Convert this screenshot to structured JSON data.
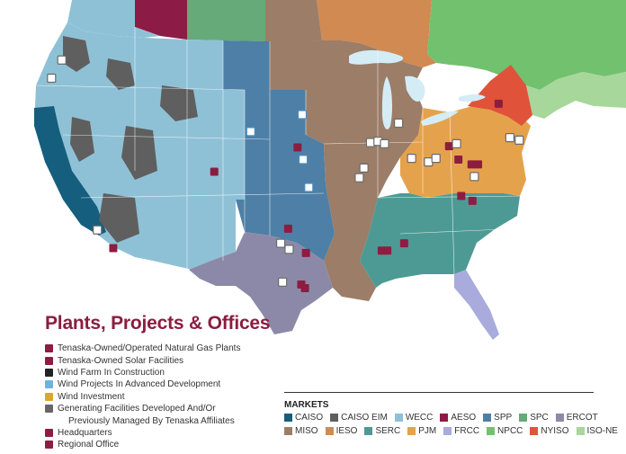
{
  "title": "Plants, Projects & Offices",
  "legend": [
    {
      "label": "Tenaska-Owned/Operated Natural Gas Plants",
      "icon": "flame-icon",
      "color": "#8c1d40"
    },
    {
      "label": "Tenaska-Owned Solar Facilities",
      "icon": "sun-icon",
      "color": "#8c1d40"
    },
    {
      "label": "Wind Farm In Construction",
      "icon": "wind-turbine-icon",
      "color": "#222222"
    },
    {
      "label": "Wind Projects In Advanced Development",
      "icon": "wind-turbine-icon",
      "color": "#6fb3dd"
    },
    {
      "label": "Wind Investment",
      "icon": "wind-turbine-icon",
      "color": "#d9a72e"
    },
    {
      "label": "Generating Facilities Developed And/Or",
      "icon": "plant-outline-icon",
      "color": "#666666"
    },
    {
      "label": "Previously Managed By Tenaska Affiliates",
      "icon": "",
      "color": ""
    },
    {
      "label": "Headquarters",
      "icon": "star-icon",
      "color": "#8c1d40"
    },
    {
      "label": "Regional Office",
      "icon": "building-icon",
      "color": "#8c1d40"
    }
  ],
  "markets": {
    "title": "MARKETS",
    "rows": [
      [
        {
          "label": "CAISO",
          "color": "#155e7e"
        },
        {
          "label": "CAISO EIM",
          "color": "#5f5f5f"
        },
        {
          "label": "WECC",
          "color": "#8fc1d6"
        },
        {
          "label": "AESO",
          "color": "#8c1b45"
        },
        {
          "label": "SPP",
          "color": "#4e7fa6"
        },
        {
          "label": "SPC",
          "color": "#66aa7a"
        },
        {
          "label": "ERCOT",
          "color": "#8c89a8"
        }
      ],
      [
        {
          "label": "MISO",
          "color": "#9b7d68"
        },
        {
          "label": "IESO",
          "color": "#d08a52"
        },
        {
          "label": "SERC",
          "color": "#4d9a94"
        },
        {
          "label": "PJM",
          "color": "#e5a24c"
        },
        {
          "label": "FRCC",
          "color": "#a8abdc"
        },
        {
          "label": "NPCC",
          "color": "#72c16f"
        },
        {
          "label": "NYISO",
          "color": "#e0533a"
        },
        {
          "label": "ISO-NE",
          "color": "#a7d79a"
        }
      ]
    ]
  },
  "map_markers": [
    {
      "icon": "building-icon",
      "lat": 39.3,
      "lon": -104.9
    },
    {
      "icon": "plant-outline-icon",
      "lat": 34.5,
      "lon": -117.4
    },
    {
      "icon": "sun-icon",
      "lat": 33.0,
      "lon": -115.7
    },
    {
      "icon": "star-icon",
      "lat": 41.3,
      "lon": -96.0
    },
    {
      "icon": "wind-turbine-icon",
      "lat": 40.3,
      "lon": -95.4
    },
    {
      "icon": "wind-turbine-icon",
      "lat": 42.6,
      "lon": -101.0
    },
    {
      "icon": "wind-turbine-icon",
      "lat": 44.0,
      "lon": -95.5
    },
    {
      "icon": "wind-turbine-icon",
      "lat": 38.0,
      "lon": -94.8
    },
    {
      "icon": "flame-icon",
      "lat": 34.6,
      "lon": -97.0
    },
    {
      "icon": "plant-outline-icon",
      "lat": 33.4,
      "lon": -97.8
    },
    {
      "icon": "plant-outline-icon",
      "lat": 32.9,
      "lon": -96.9
    },
    {
      "icon": "flame-icon",
      "lat": 32.6,
      "lon": -95.1
    },
    {
      "icon": "plant-outline-icon",
      "lat": 30.2,
      "lon": -97.6
    },
    {
      "icon": "flame-icon",
      "lat": 30.0,
      "lon": -95.6
    },
    {
      "icon": "building-icon",
      "lat": 29.7,
      "lon": -95.2
    },
    {
      "icon": "flame-icon",
      "lat": 32.8,
      "lon": -87.0
    },
    {
      "icon": "flame-icon",
      "lat": 32.8,
      "lon": -86.4
    },
    {
      "icon": "flame-icon",
      "lat": 33.4,
      "lon": -84.6
    },
    {
      "icon": "plant-outline-icon",
      "lat": 38.8,
      "lon": -89.4
    },
    {
      "icon": "plant-outline-icon",
      "lat": 39.6,
      "lon": -88.9
    },
    {
      "icon": "plant-outline-icon",
      "lat": 41.7,
      "lon": -88.2
    },
    {
      "icon": "plant-outline-icon",
      "lat": 41.8,
      "lon": -87.4
    },
    {
      "icon": "plant-outline-icon",
      "lat": 41.6,
      "lon": -86.7
    },
    {
      "icon": "plant-outline-icon",
      "lat": 43.3,
      "lon": -85.2
    },
    {
      "icon": "plant-outline-icon",
      "lat": 40.4,
      "lon": -83.8
    },
    {
      "icon": "plant-outline-icon",
      "lat": 40.1,
      "lon": -82.0
    },
    {
      "icon": "plant-outline-icon",
      "lat": 40.4,
      "lon": -81.2
    },
    {
      "icon": "flame-icon",
      "lat": 41.4,
      "lon": -79.8
    },
    {
      "icon": "plant-outline-icon",
      "lat": 41.6,
      "lon": -79.0
    },
    {
      "icon": "flame-icon",
      "lat": 40.3,
      "lon": -78.8
    },
    {
      "icon": "flame-icon",
      "lat": 39.9,
      "lon": -77.4
    },
    {
      "icon": "building-icon",
      "lat": 39.9,
      "lon": -76.7
    },
    {
      "icon": "plant-outline-icon",
      "lat": 38.9,
      "lon": -77.1
    },
    {
      "icon": "flame-icon",
      "lat": 37.3,
      "lon": -78.5
    },
    {
      "icon": "flame-icon",
      "lat": 36.9,
      "lon": -77.3
    },
    {
      "icon": "flame-icon",
      "lat": 44.9,
      "lon": -74.5
    },
    {
      "icon": "plant-outline-icon",
      "lat": 42.1,
      "lon": -73.3
    },
    {
      "icon": "plant-outline-icon",
      "lat": 41.9,
      "lon": -72.3
    },
    {
      "icon": "plant-outline-icon",
      "lat": 48.5,
      "lon": -121.2
    },
    {
      "icon": "plant-outline-icon",
      "lat": 47.0,
      "lon": -122.3
    }
  ]
}
